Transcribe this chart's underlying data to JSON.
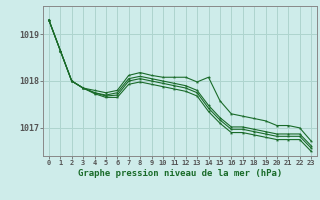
{
  "title": "Graphe pression niveau de la mer (hPa)",
  "background_color": "#ceecea",
  "grid_color": "#aed4ce",
  "line_color": "#1a6b2a",
  "x_ticks": [
    0,
    1,
    2,
    3,
    4,
    5,
    6,
    7,
    8,
    9,
    10,
    11,
    12,
    13,
    14,
    15,
    16,
    17,
    18,
    19,
    20,
    21,
    22,
    23
  ],
  "ylim": [
    1016.4,
    1019.6
  ],
  "yticks": [
    1017,
    1018,
    1019
  ],
  "series": [
    [
      1019.3,
      1018.65,
      1018.0,
      1017.85,
      1017.8,
      1017.75,
      1017.8,
      1018.12,
      1018.18,
      1018.12,
      1018.08,
      1018.08,
      1018.08,
      1017.98,
      1018.08,
      1017.58,
      1017.3,
      1017.25,
      1017.2,
      1017.15,
      1017.05,
      1017.05,
      1017.0,
      1016.72
    ],
    [
      1019.3,
      1018.65,
      1018.0,
      1017.85,
      1017.75,
      1017.7,
      1017.75,
      1018.05,
      1018.1,
      1018.05,
      1018.0,
      1017.95,
      1017.9,
      1017.8,
      1017.48,
      1017.22,
      1017.02,
      1017.02,
      1016.97,
      1016.92,
      1016.87,
      1016.87,
      1016.87,
      1016.62
    ],
    [
      1019.3,
      1018.65,
      1018.0,
      1017.85,
      1017.75,
      1017.68,
      1017.7,
      1018.0,
      1018.05,
      1018.0,
      1017.95,
      1017.9,
      1017.85,
      1017.75,
      1017.42,
      1017.17,
      1016.97,
      1016.97,
      1016.92,
      1016.87,
      1016.82,
      1016.82,
      1016.82,
      1016.57
    ],
    [
      1019.3,
      1018.65,
      1018.0,
      1017.85,
      1017.73,
      1017.65,
      1017.65,
      1017.93,
      1017.98,
      1017.93,
      1017.88,
      1017.83,
      1017.78,
      1017.68,
      1017.35,
      1017.1,
      1016.9,
      1016.9,
      1016.85,
      1016.8,
      1016.75,
      1016.75,
      1016.75,
      1016.5
    ]
  ]
}
